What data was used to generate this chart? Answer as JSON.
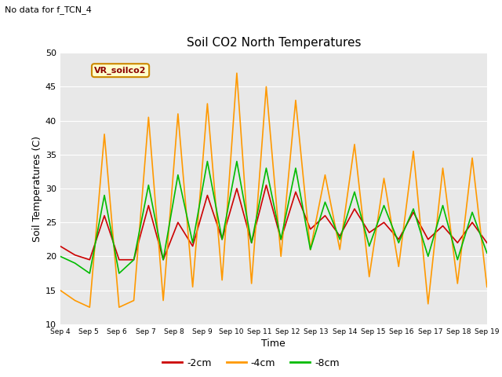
{
  "title": "Soil CO2 North Temperatures",
  "no_data_text": "No data for f_TCN_4",
  "xlabel": "Time",
  "ylabel": "Soil Temperatures (C)",
  "ylim": [
    10,
    50
  ],
  "bg_color": "#e8e8e8",
  "legend_label": "VR_soilco2",
  "legend_bg": "#ffffcc",
  "legend_border": "#cc8800",
  "x_tick_labels": [
    "Sep 4",
    "Sep 5",
    "Sep 6",
    "Sep 7",
    "Sep 8",
    "Sep 9",
    "Sep 10",
    "Sep 11",
    "Sep 12",
    "Sep 13",
    "Sep 14",
    "Sep 15",
    "Sep 16",
    "Sep 17",
    "Sep 18",
    "Sep 19"
  ],
  "line_colors": {
    "2cm": "#cc0000",
    "4cm": "#ff9900",
    "8cm": "#00bb00"
  },
  "line_labels": [
    "-2cm",
    "-4cm",
    "-8cm"
  ],
  "t_2cm": [
    21.5,
    20.2,
    19.5,
    26.0,
    19.5,
    19.5,
    27.5,
    19.5,
    25.0,
    21.5,
    29.0,
    22.5,
    30.0,
    22.0,
    30.5,
    22.5,
    29.5,
    24.0,
    26.0,
    23.0,
    27.0,
    23.5,
    25.0,
    22.5,
    26.5,
    22.5,
    24.5,
    22.0,
    25.0,
    22.0
  ],
  "t_4cm": [
    15.0,
    13.5,
    12.5,
    38.0,
    12.5,
    13.5,
    40.5,
    13.5,
    41.0,
    15.5,
    42.5,
    16.5,
    47.0,
    16.0,
    45.0,
    20.0,
    43.0,
    21.0,
    32.0,
    21.0,
    36.5,
    17.0,
    31.5,
    18.5,
    35.5,
    13.0,
    33.0,
    16.0,
    34.5,
    15.5
  ],
  "t_8cm": [
    20.0,
    19.0,
    17.5,
    29.0,
    17.5,
    19.5,
    30.5,
    19.5,
    32.0,
    22.0,
    34.0,
    22.5,
    34.0,
    22.0,
    33.0,
    22.5,
    33.0,
    21.0,
    28.0,
    22.5,
    29.5,
    21.5,
    27.5,
    22.0,
    27.0,
    20.0,
    27.5,
    19.5,
    26.5,
    20.5
  ]
}
